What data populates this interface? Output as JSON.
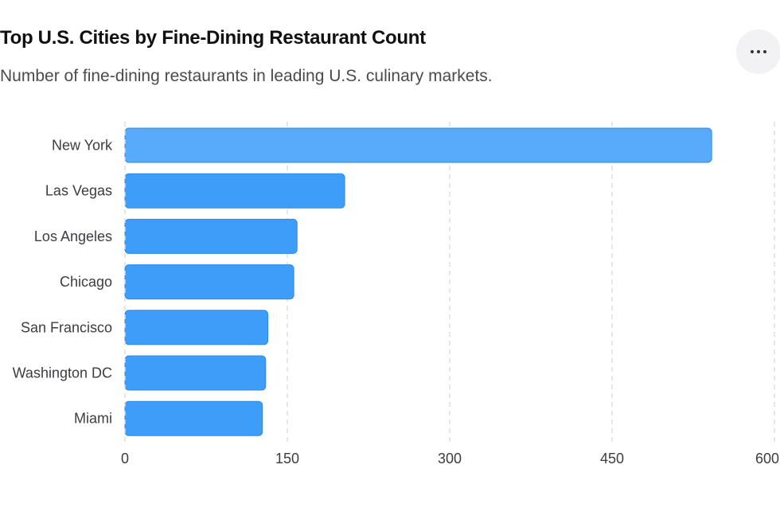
{
  "header": {
    "title": "Top U.S. Cities by Fine-Dining Restaurant Count",
    "subtitle": "Number of fine-dining restaurants in leading U.S. culinary markets."
  },
  "more_button": {
    "icon": "more-horizontal-icon"
  },
  "chart_data": {
    "type": "bar",
    "orientation": "horizontal",
    "title": "Top U.S. Cities by Fine-Dining Restaurant Count",
    "subtitle": "Number of fine-dining restaurants in leading U.S. culinary markets.",
    "categories": [
      "New York",
      "Las Vegas",
      "Los Angeles",
      "Chicago",
      "San Francisco",
      "Washington DC",
      "Miami"
    ],
    "values": [
      542,
      203,
      159,
      156,
      132,
      130,
      127
    ],
    "xlim": [
      0,
      600
    ],
    "ticks": [
      0,
      150,
      300,
      450,
      600
    ],
    "tick_labels": [
      "0",
      "150",
      "300",
      "450",
      "600"
    ],
    "grid": true,
    "bar_color": "#3d9df8",
    "highlight_color": "#58abfb",
    "bar_border_color": "#2b8ae6",
    "grid_color": "#dcdcdc"
  }
}
